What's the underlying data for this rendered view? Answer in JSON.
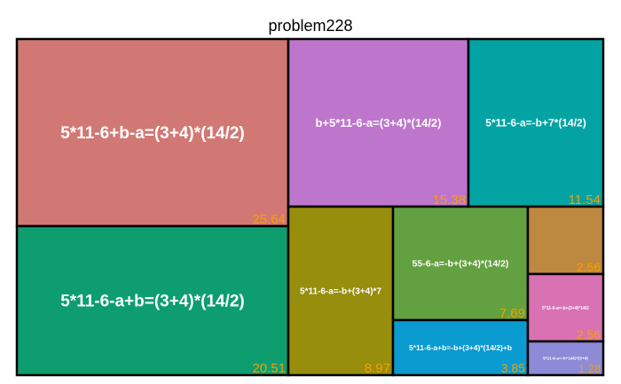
{
  "chart_data": {
    "type": "treemap",
    "title": "problem228",
    "items": [
      {
        "label": "5*11-6+b-a=(3+4)*(14/2)",
        "value": 25.64,
        "value_text": "25.64",
        "color": "#d17874"
      },
      {
        "label": "5*11-6-a+b=(3+4)*(14/2)",
        "value": 20.51,
        "value_text": "20.51",
        "color": "#0d9d6e"
      },
      {
        "label": "b+5*11-6-a=(3+4)*(14/2)",
        "value": 15.38,
        "value_text": "15.38",
        "color": "#be75cc"
      },
      {
        "label": "5*11-6-a=-b+7*(14/2)",
        "value": 11.54,
        "value_text": "11.54",
        "color": "#03a3a3"
      },
      {
        "label": "5*11-6-a=-b+(3+4)*7",
        "value": 8.97,
        "value_text": "8.97",
        "color": "#968e0c"
      },
      {
        "label": "55-6-a=-b+(3+4)*(14/2)",
        "value": 7.69,
        "value_text": "7.69",
        "color": "#62a040"
      },
      {
        "label": "5*11-6-a+b=-b+(3+4)*(14/2)+b",
        "value": 3.85,
        "value_text": "3.85",
        "color": "#0a9bd0"
      },
      {
        "label": "",
        "value": 2.56,
        "value_text": "2.56",
        "color": "#bd8840"
      },
      {
        "label": "5*11-6-a=-b+(3+4)*14/2",
        "value": 2.56,
        "value_text": "2.56",
        "color": "#d872b3"
      },
      {
        "label": "5*11-6-a=-b+14/2*(3+4)",
        "value": 1.28,
        "value_text": "1.28",
        "color": "#8d8ad8"
      }
    ]
  }
}
